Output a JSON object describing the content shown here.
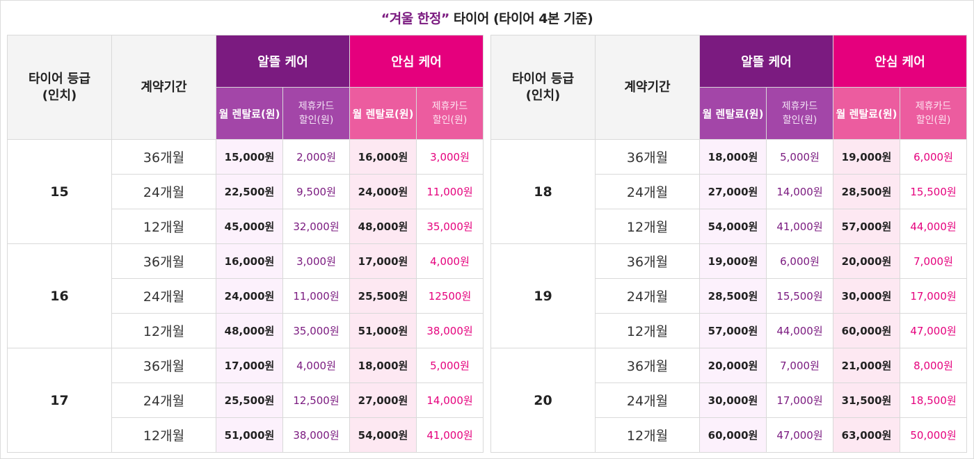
{
  "title": {
    "highlight": "“겨울 한정”",
    "rest": " 타이어 (타이어 4본 기준)"
  },
  "headers": {
    "grade": "타이어 등급\n(인치)",
    "period": "계약기간",
    "plan_a": "알뜰 케어",
    "plan_b": "안심 케어",
    "monthly": "월 렌탈료(원)",
    "discount": "제휴카드\n할인(원)"
  },
  "colors": {
    "plan_a": "#7b1b80",
    "plan_a_sub": "#a346a8",
    "plan_b": "#e5007d",
    "plan_b_sub": "#ec5c9f"
  },
  "tables": [
    {
      "groups": [
        {
          "grade": "15",
          "rows": [
            {
              "period": "36개월",
              "a_rent": "15,000원",
              "a_disc": "2,000원",
              "b_rent": "16,000원",
              "b_disc": "3,000원"
            },
            {
              "period": "24개월",
              "a_rent": "22,500원",
              "a_disc": "9,500원",
              "b_rent": "24,000원",
              "b_disc": "11,000원"
            },
            {
              "period": "12개월",
              "a_rent": "45,000원",
              "a_disc": "32,000원",
              "b_rent": "48,000원",
              "b_disc": "35,000원"
            }
          ]
        },
        {
          "grade": "16",
          "rows": [
            {
              "period": "36개월",
              "a_rent": "16,000원",
              "a_disc": "3,000원",
              "b_rent": "17,000원",
              "b_disc": "4,000원"
            },
            {
              "period": "24개월",
              "a_rent": "24,000원",
              "a_disc": "11,000원",
              "b_rent": "25,500원",
              "b_disc": "12500원"
            },
            {
              "period": "12개월",
              "a_rent": "48,000원",
              "a_disc": "35,000원",
              "b_rent": "51,000원",
              "b_disc": "38,000원"
            }
          ]
        },
        {
          "grade": "17",
          "rows": [
            {
              "period": "36개월",
              "a_rent": "17,000원",
              "a_disc": "4,000원",
              "b_rent": "18,000원",
              "b_disc": "5,000원"
            },
            {
              "period": "24개월",
              "a_rent": "25,500원",
              "a_disc": "12,500원",
              "b_rent": "27,000원",
              "b_disc": "14,000원"
            },
            {
              "period": "12개월",
              "a_rent": "51,000원",
              "a_disc": "38,000원",
              "b_rent": "54,000원",
              "b_disc": "41,000원"
            }
          ]
        }
      ]
    },
    {
      "groups": [
        {
          "grade": "18",
          "rows": [
            {
              "period": "36개월",
              "a_rent": "18,000원",
              "a_disc": "5,000원",
              "b_rent": "19,000원",
              "b_disc": "6,000원"
            },
            {
              "period": "24개월",
              "a_rent": "27,000원",
              "a_disc": "14,000원",
              "b_rent": "28,500원",
              "b_disc": "15,500원"
            },
            {
              "period": "12개월",
              "a_rent": "54,000원",
              "a_disc": "41,000원",
              "b_rent": "57,000원",
              "b_disc": "44,000원"
            }
          ]
        },
        {
          "grade": "19",
          "rows": [
            {
              "period": "36개월",
              "a_rent": "19,000원",
              "a_disc": "6,000원",
              "b_rent": "20,000원",
              "b_disc": "7,000원"
            },
            {
              "period": "24개월",
              "a_rent": "28,500원",
              "a_disc": "15,500원",
              "b_rent": "30,000원",
              "b_disc": "17,000원"
            },
            {
              "period": "12개월",
              "a_rent": "57,000원",
              "a_disc": "44,000원",
              "b_rent": "60,000원",
              "b_disc": "47,000원"
            }
          ]
        },
        {
          "grade": "20",
          "rows": [
            {
              "period": "36개월",
              "a_rent": "20,000원",
              "a_disc": "7,000원",
              "b_rent": "21,000원",
              "b_disc": "8,000원"
            },
            {
              "period": "24개월",
              "a_rent": "30,000원",
              "a_disc": "17,000원",
              "b_rent": "31,500원",
              "b_disc": "18,500원"
            },
            {
              "period": "12개월",
              "a_rent": "60,000원",
              "a_disc": "47,000원",
              "b_rent": "63,000원",
              "b_disc": "50,000원"
            }
          ]
        }
      ]
    }
  ]
}
